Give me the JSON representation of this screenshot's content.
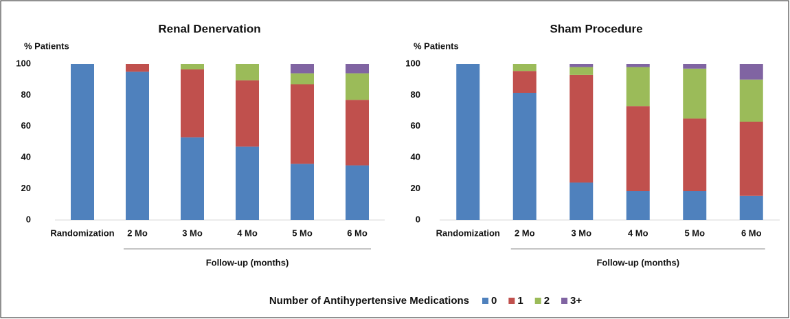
{
  "legend_title": "Number of Antihypertensive Medications",
  "chart_data": [
    {
      "type": "stacked-bar",
      "title": "Renal Denervation",
      "ylabel": "% Patients",
      "xlabel": "Follow-up (months)",
      "categories": [
        "Randomization",
        "2 Mo",
        "3 Mo",
        "4 Mo",
        "5 Mo",
        "6 Mo"
      ],
      "ylim": [
        0,
        100
      ],
      "yticks": [
        0,
        20,
        40,
        60,
        80,
        100
      ],
      "series": [
        {
          "name": "0",
          "color": "#4f81bd",
          "values": [
            100,
            95,
            53,
            47,
            36,
            35
          ]
        },
        {
          "name": "1",
          "color": "#c0504d",
          "values": [
            0,
            5,
            43.5,
            42.5,
            51,
            42
          ]
        },
        {
          "name": "2",
          "color": "#9bbb59",
          "values": [
            0,
            0,
            3.5,
            10.5,
            7,
            17
          ]
        },
        {
          "name": "3+",
          "color": "#8064a2",
          "values": [
            0,
            0,
            0,
            0,
            6,
            6
          ]
        }
      ]
    },
    {
      "type": "stacked-bar",
      "title": "Sham Procedure",
      "ylabel": "% Patients",
      "xlabel": "Follow-up (months)",
      "categories": [
        "Randomization",
        "2 Mo",
        "3 Mo",
        "4 Mo",
        "5 Mo",
        "6 Mo"
      ],
      "ylim": [
        0,
        100
      ],
      "yticks": [
        0,
        20,
        40,
        60,
        80,
        100
      ],
      "series": [
        {
          "color": "#4f81bd",
          "values": [
            100,
            81.5,
            24,
            18.5,
            18.5,
            15.5
          ]
        },
        {
          "color": "#c0504d",
          "values": [
            0,
            14,
            69,
            54.5,
            46.5,
            47.5
          ]
        },
        {
          "color": "#9bbb59",
          "values": [
            0,
            4.5,
            5,
            25,
            32,
            27
          ]
        },
        {
          "color": "#8064a2",
          "values": [
            0,
            0,
            2,
            2,
            3,
            10
          ]
        }
      ]
    }
  ]
}
